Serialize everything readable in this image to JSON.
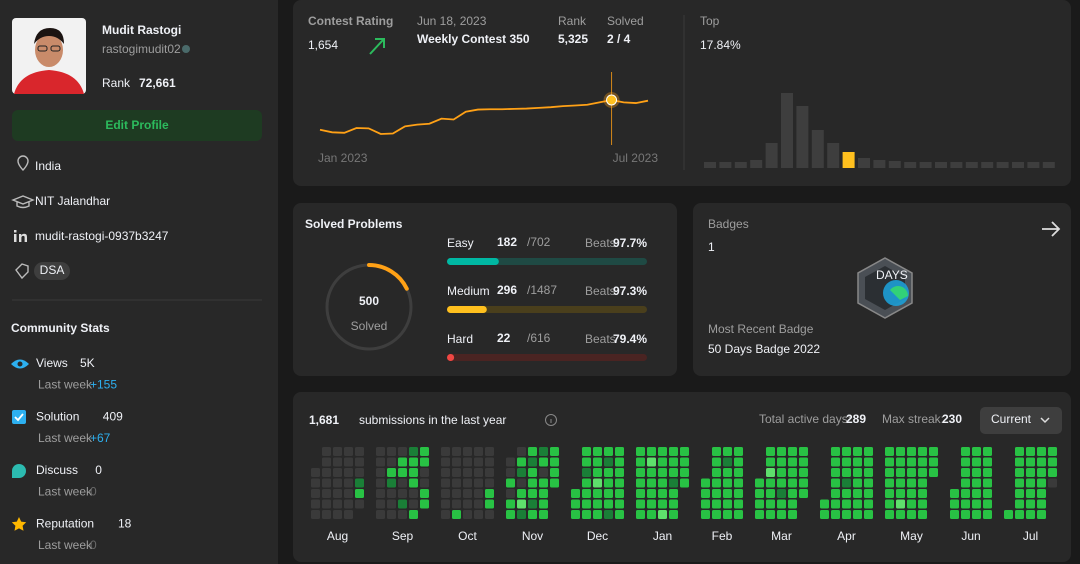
{
  "profile": {
    "name": "Mudit Rastogi",
    "username": "rastogimudit02",
    "rank_label": "Rank",
    "rank": "72,661",
    "edit_button": "Edit Profile",
    "location": "India",
    "school": "NIT Jalandhar",
    "linkedin": "mudit-rastogi-0937b3247",
    "skill_tag": "DSA"
  },
  "community_stats": {
    "title": "Community Stats",
    "items": [
      {
        "label": "Views",
        "value": "5K",
        "sub_label": "Last week",
        "change": "+155"
      },
      {
        "label": "Solution",
        "value": 409,
        "sub_label": "Last week",
        "change": "+67"
      },
      {
        "label": "Discuss",
        "value": 0,
        "sub_label": "Last week",
        "change": 0
      },
      {
        "label": "Reputation",
        "value": 18,
        "sub_label": "Last week",
        "change": 0
      }
    ]
  },
  "contest": {
    "rating_label": "Contest Rating",
    "rating": "1,654",
    "date": "Jun 18, 2023",
    "contest_name": "Weekly Contest 350",
    "rank_label": "Rank",
    "rank": "5,325",
    "solved_label": "Solved",
    "solved": "2 / 4",
    "x_start_label": "Jan 2023",
    "x_end_label": "Jul 2023",
    "rating_chart": {
      "type": "line",
      "color": "#ffa116",
      "highlight": 24,
      "values": [
        1480,
        1465,
        1462,
        1490,
        1488,
        1455,
        1458,
        1500,
        1510,
        1515,
        1545,
        1540,
        1585,
        1598,
        1600,
        1600,
        1602,
        1604,
        1608,
        1612,
        1618,
        1622,
        1626,
        1640,
        1654,
        1640,
        1636,
        1650
      ]
    },
    "top_label": "Top",
    "top_percent": "17.84%",
    "distribution_chart": {
      "type": "bar",
      "color": "#3e3e3e",
      "highlight_color": "#ffc01e",
      "highlight": 9,
      "values": [
        6,
        6,
        6,
        8,
        25,
        75,
        62,
        38,
        25,
        16,
        10,
        8,
        7,
        6,
        6,
        6,
        6,
        6,
        6,
        6,
        6,
        6,
        6
      ]
    }
  },
  "solved": {
    "title": "Solved Problems",
    "total": 500,
    "total_label": "Solved",
    "difficulties": [
      {
        "name": "Easy",
        "solved": 182,
        "total": 702,
        "total_label": "/702",
        "beats_label": "Beats",
        "beats": "97.7%",
        "color": "#00b8a3",
        "track": "#1f4a44"
      },
      {
        "name": "Medium",
        "solved": 296,
        "total": 1487,
        "total_label": "/1487",
        "beats_label": "Beats",
        "beats": "97.3%",
        "color": "#ffc01e",
        "track": "#4a3f1c"
      },
      {
        "name": "Hard",
        "solved": 22,
        "total": 616,
        "total_label": "/616",
        "beats_label": "Beats",
        "beats": "79.4%",
        "color": "#ef4743",
        "track": "#4a2422"
      }
    ]
  },
  "badges": {
    "title": "Badges",
    "count": 1,
    "badge_icon_text": "DAYS",
    "recent_label": "Most Recent Badge",
    "recent_name": "50 Days Badge 2022"
  },
  "submissions": {
    "count": "1,681",
    "text": "submissions in the last year",
    "active_label": "Total active days:",
    "active_days": 289,
    "streak_label": "Max streak:",
    "max_streak": 230,
    "dropdown": "Current",
    "level_colors": [
      "#3a3a3a",
      "#0e4429",
      "#1a7f37",
      "#28c244",
      "#5ee06c"
    ],
    "months": [
      {
        "name": "Aug",
        "weeks": [
          [
            null,
            null,
            0,
            0,
            0,
            0,
            0
          ],
          [
            0,
            0,
            0,
            0,
            0,
            0,
            0
          ],
          [
            0,
            0,
            0,
            0,
            0,
            0,
            0
          ],
          [
            0,
            0,
            0,
            0,
            0,
            0,
            0
          ],
          [
            0,
            0,
            0,
            2,
            3,
            0,
            null
          ]
        ]
      },
      {
        "name": "Sep",
        "weeks": [
          [
            0,
            0,
            0,
            0,
            0,
            0,
            0
          ],
          [
            0,
            0,
            3,
            2,
            0,
            0,
            0
          ],
          [
            0,
            3,
            3,
            0,
            0,
            2,
            0
          ],
          [
            2,
            3,
            3,
            3,
            0,
            0,
            3
          ],
          [
            3,
            3,
            0,
            0,
            3,
            3,
            null
          ]
        ]
      },
      {
        "name": "Oct",
        "weeks": [
          [
            0,
            0,
            0,
            0,
            0,
            0,
            0
          ],
          [
            0,
            0,
            0,
            0,
            0,
            0,
            3
          ],
          [
            0,
            0,
            0,
            0,
            0,
            0,
            0
          ],
          [
            0,
            0,
            0,
            0,
            0,
            0,
            0
          ],
          [
            0,
            0,
            0,
            0,
            3,
            3,
            0
          ]
        ]
      },
      {
        "name": "Nov",
        "weeks": [
          [
            null,
            0,
            0,
            3,
            0,
            3,
            3
          ],
          [
            0,
            3,
            2,
            0,
            3,
            4,
            2
          ],
          [
            3,
            2,
            3,
            3,
            3,
            2,
            3
          ],
          [
            2,
            3,
            0,
            3,
            3,
            3,
            3
          ],
          [
            3,
            3,
            3,
            3,
            null,
            null,
            null
          ]
        ]
      },
      {
        "name": "Dec",
        "weeks": [
          [
            null,
            null,
            null,
            null,
            3,
            3,
            3
          ],
          [
            3,
            3,
            2,
            3,
            3,
            3,
            3
          ],
          [
            3,
            3,
            3,
            4,
            3,
            3,
            3
          ],
          [
            3,
            2,
            3,
            3,
            3,
            3,
            2
          ],
          [
            3,
            3,
            3,
            3,
            3,
            3,
            3
          ]
        ]
      },
      {
        "name": "Jan",
        "weeks": [
          [
            3,
            3,
            3,
            3,
            3,
            3,
            3
          ],
          [
            3,
            4,
            3,
            3,
            3,
            3,
            3
          ],
          [
            3,
            3,
            3,
            3,
            3,
            3,
            4
          ],
          [
            3,
            3,
            3,
            2,
            3,
            3,
            3
          ],
          [
            3,
            3,
            3,
            3,
            null,
            null,
            null
          ]
        ]
      },
      {
        "name": "Feb",
        "weeks": [
          [
            null,
            null,
            null,
            3,
            3,
            3,
            3
          ],
          [
            3,
            3,
            3,
            3,
            3,
            3,
            3
          ],
          [
            3,
            2,
            3,
            3,
            3,
            3,
            3
          ],
          [
            3,
            3,
            3,
            3,
            3,
            3,
            3
          ]
        ]
      },
      {
        "name": "Mar",
        "weeks": [
          [
            null,
            null,
            null,
            3,
            3,
            3,
            3
          ],
          [
            3,
            3,
            4,
            3,
            3,
            3,
            3
          ],
          [
            3,
            3,
            3,
            3,
            2,
            3,
            3
          ],
          [
            3,
            3,
            3,
            3,
            3,
            3,
            3
          ],
          [
            3,
            3,
            3,
            3,
            3,
            null,
            null
          ]
        ]
      },
      {
        "name": "Apr",
        "weeks": [
          [
            null,
            null,
            null,
            null,
            null,
            3,
            3
          ],
          [
            3,
            3,
            3,
            3,
            3,
            3,
            3
          ],
          [
            3,
            3,
            3,
            2,
            3,
            3,
            3
          ],
          [
            3,
            3,
            3,
            3,
            3,
            3,
            3
          ],
          [
            3,
            3,
            3,
            3,
            3,
            3,
            3
          ]
        ]
      },
      {
        "name": "May",
        "weeks": [
          [
            3,
            3,
            3,
            3,
            3,
            3,
            3
          ],
          [
            3,
            3,
            3,
            3,
            3,
            4,
            3
          ],
          [
            3,
            3,
            3,
            3,
            3,
            3,
            3
          ],
          [
            3,
            3,
            3,
            3,
            3,
            3,
            3
          ],
          [
            3,
            3,
            3,
            null,
            null,
            null,
            null
          ]
        ]
      },
      {
        "name": "Jun",
        "weeks": [
          [
            null,
            null,
            null,
            null,
            3,
            3,
            3
          ],
          [
            3,
            3,
            3,
            3,
            3,
            3,
            3
          ],
          [
            3,
            3,
            3,
            3,
            3,
            3,
            3
          ],
          [
            3,
            3,
            3,
            3,
            3,
            3,
            3
          ]
        ]
      },
      {
        "name": "Jul",
        "weeks": [
          [
            null,
            null,
            null,
            null,
            null,
            null,
            3
          ],
          [
            3,
            3,
            3,
            3,
            3,
            3,
            3
          ],
          [
            3,
            3,
            3,
            3,
            3,
            3,
            3
          ],
          [
            3,
            3,
            3,
            3,
            3,
            3,
            3
          ],
          [
            3,
            3,
            3,
            0,
            null,
            null,
            null
          ]
        ]
      }
    ]
  }
}
